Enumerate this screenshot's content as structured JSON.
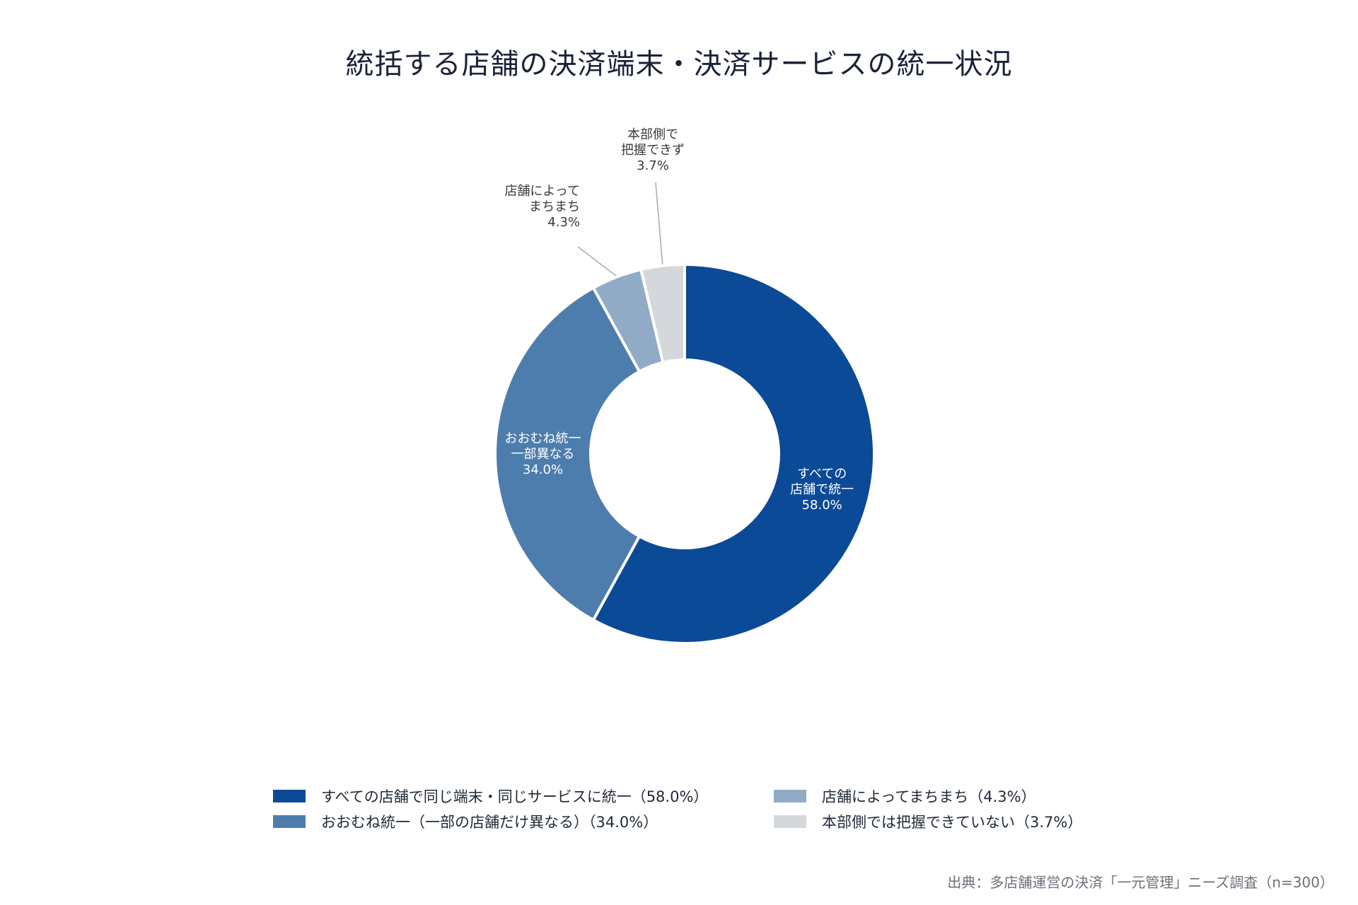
{
  "chart_data": {
    "type": "pie",
    "title": "統括する店舗の決済端末・決済サービスの統一状況",
    "donut": true,
    "legend_position": "bottom",
    "slices": [
      {
        "name": "すべての店舗で同じ端末・同じサービスに統一（58.0%）",
        "label_lines": [
          "すべての",
          "店舗で統一",
          "58.0%"
        ],
        "value": 58.0,
        "color": "#0b4a96",
        "label_text_color": "#ffffff"
      },
      {
        "name": "おおむね統一（一部の店舗だけ異なる）（34.0%）",
        "label_lines": [
          "おおむね統一",
          "一部異なる",
          "34.0%"
        ],
        "value": 34.0,
        "color": "#4d7dad",
        "label_text_color": "#ffffff"
      },
      {
        "name": "店舗によってまちまち（4.3%）",
        "label_lines": [
          "店舗によって",
          "まちまち",
          "4.3%"
        ],
        "value": 4.3,
        "color": "#91aac6",
        "label_text_color": "#3a3a3a"
      },
      {
        "name": "本部側では把握できていない（3.7%）",
        "label_lines": [
          "本部側で",
          "把握できず",
          "3.7%"
        ],
        "value": 3.7,
        "color": "#d4d8dc",
        "label_text_color": "#3a3a3a"
      }
    ]
  },
  "source": "出典：多店舗運営の決済「一元管理」ニーズ調査（n=300）"
}
